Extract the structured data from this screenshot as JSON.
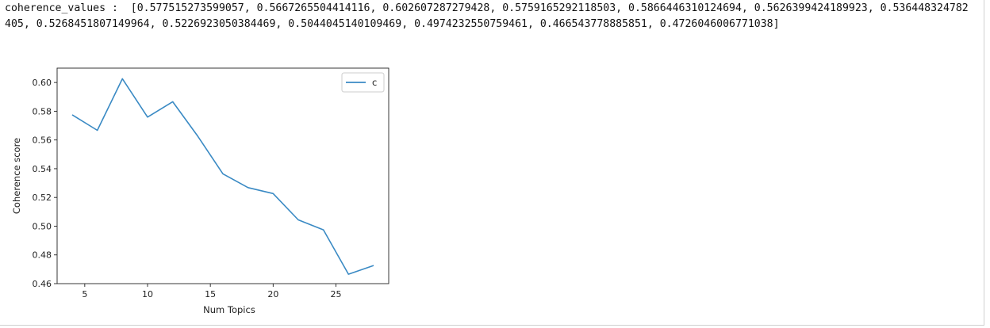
{
  "stdout_text": "coherence_values :  [0.577515273599057, 0.5667265504414116, 0.602607287279428, 0.5759165292118503, 0.5866446310124694, 0.5626399424189923, 0.536448324782405, 0.5268451807149964, 0.5226923050384469, 0.5044045140109469, 0.4974232550759461, 0.466543778885851, 0.4726046006771038]",
  "chart_data": {
    "type": "line",
    "xlabel": "Num Topics",
    "ylabel": "Coherence score",
    "xlim": [
      2.8,
      29.2
    ],
    "ylim": [
      0.46,
      0.61
    ],
    "xticks": [
      5,
      10,
      15,
      20,
      25
    ],
    "yticks": [
      0.46,
      0.48,
      0.5,
      0.52,
      0.54,
      0.56,
      0.58,
      0.6
    ],
    "grid": false,
    "legend_position": "top-right",
    "x": [
      4,
      6,
      8,
      10,
      12,
      14,
      16,
      18,
      20,
      22,
      24,
      26,
      28
    ],
    "series": [
      {
        "name": "c",
        "color": "#3a8ac4",
        "values": [
          0.577515273599057,
          0.5667265504414116,
          0.602607287279428,
          0.5759165292118503,
          0.5866446310124694,
          0.5626399424189923,
          0.536448324782405,
          0.5268451807149964,
          0.5226923050384469,
          0.5044045140109469,
          0.4974232550759461,
          0.466543778885851,
          0.4726046006771038
        ]
      }
    ]
  }
}
